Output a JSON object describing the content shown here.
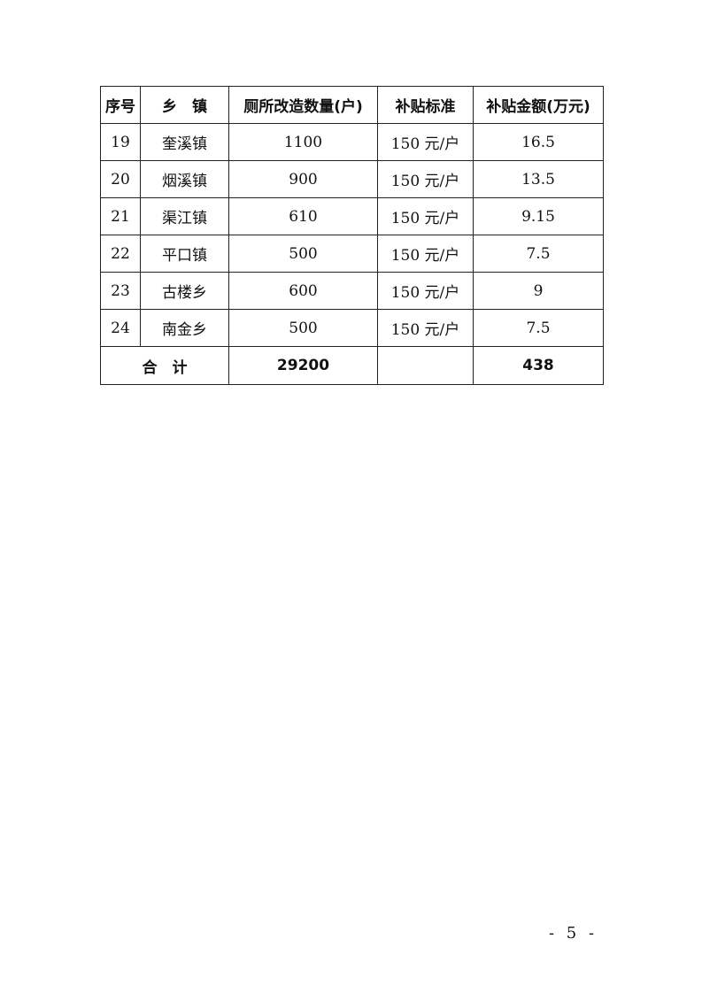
{
  "table": {
    "headers": [
      "序号",
      "乡　镇",
      "厕所改造数量(户)",
      "补贴标准",
      "补贴金额(万元)"
    ],
    "rows": [
      [
        "19",
        "奎溪镇",
        "1100",
        "150 元/户",
        "16.5"
      ],
      [
        "20",
        "烟溪镇",
        "900",
        "150 元/户",
        "13.5"
      ],
      [
        "21",
        "渠江镇",
        "610",
        "150 元/户",
        "9.15"
      ],
      [
        "22",
        "平口镇",
        "500",
        "150 元/户",
        "7.5"
      ],
      [
        "23",
        "古楼乡",
        "600",
        "150 元/户",
        "9"
      ],
      [
        "24",
        "南金乡",
        "500",
        "150 元/户",
        "7.5"
      ]
    ],
    "total": {
      "label": "合　计",
      "quantity": "29200",
      "standard": "",
      "amount": "438"
    }
  },
  "page_number": "- 5 -"
}
